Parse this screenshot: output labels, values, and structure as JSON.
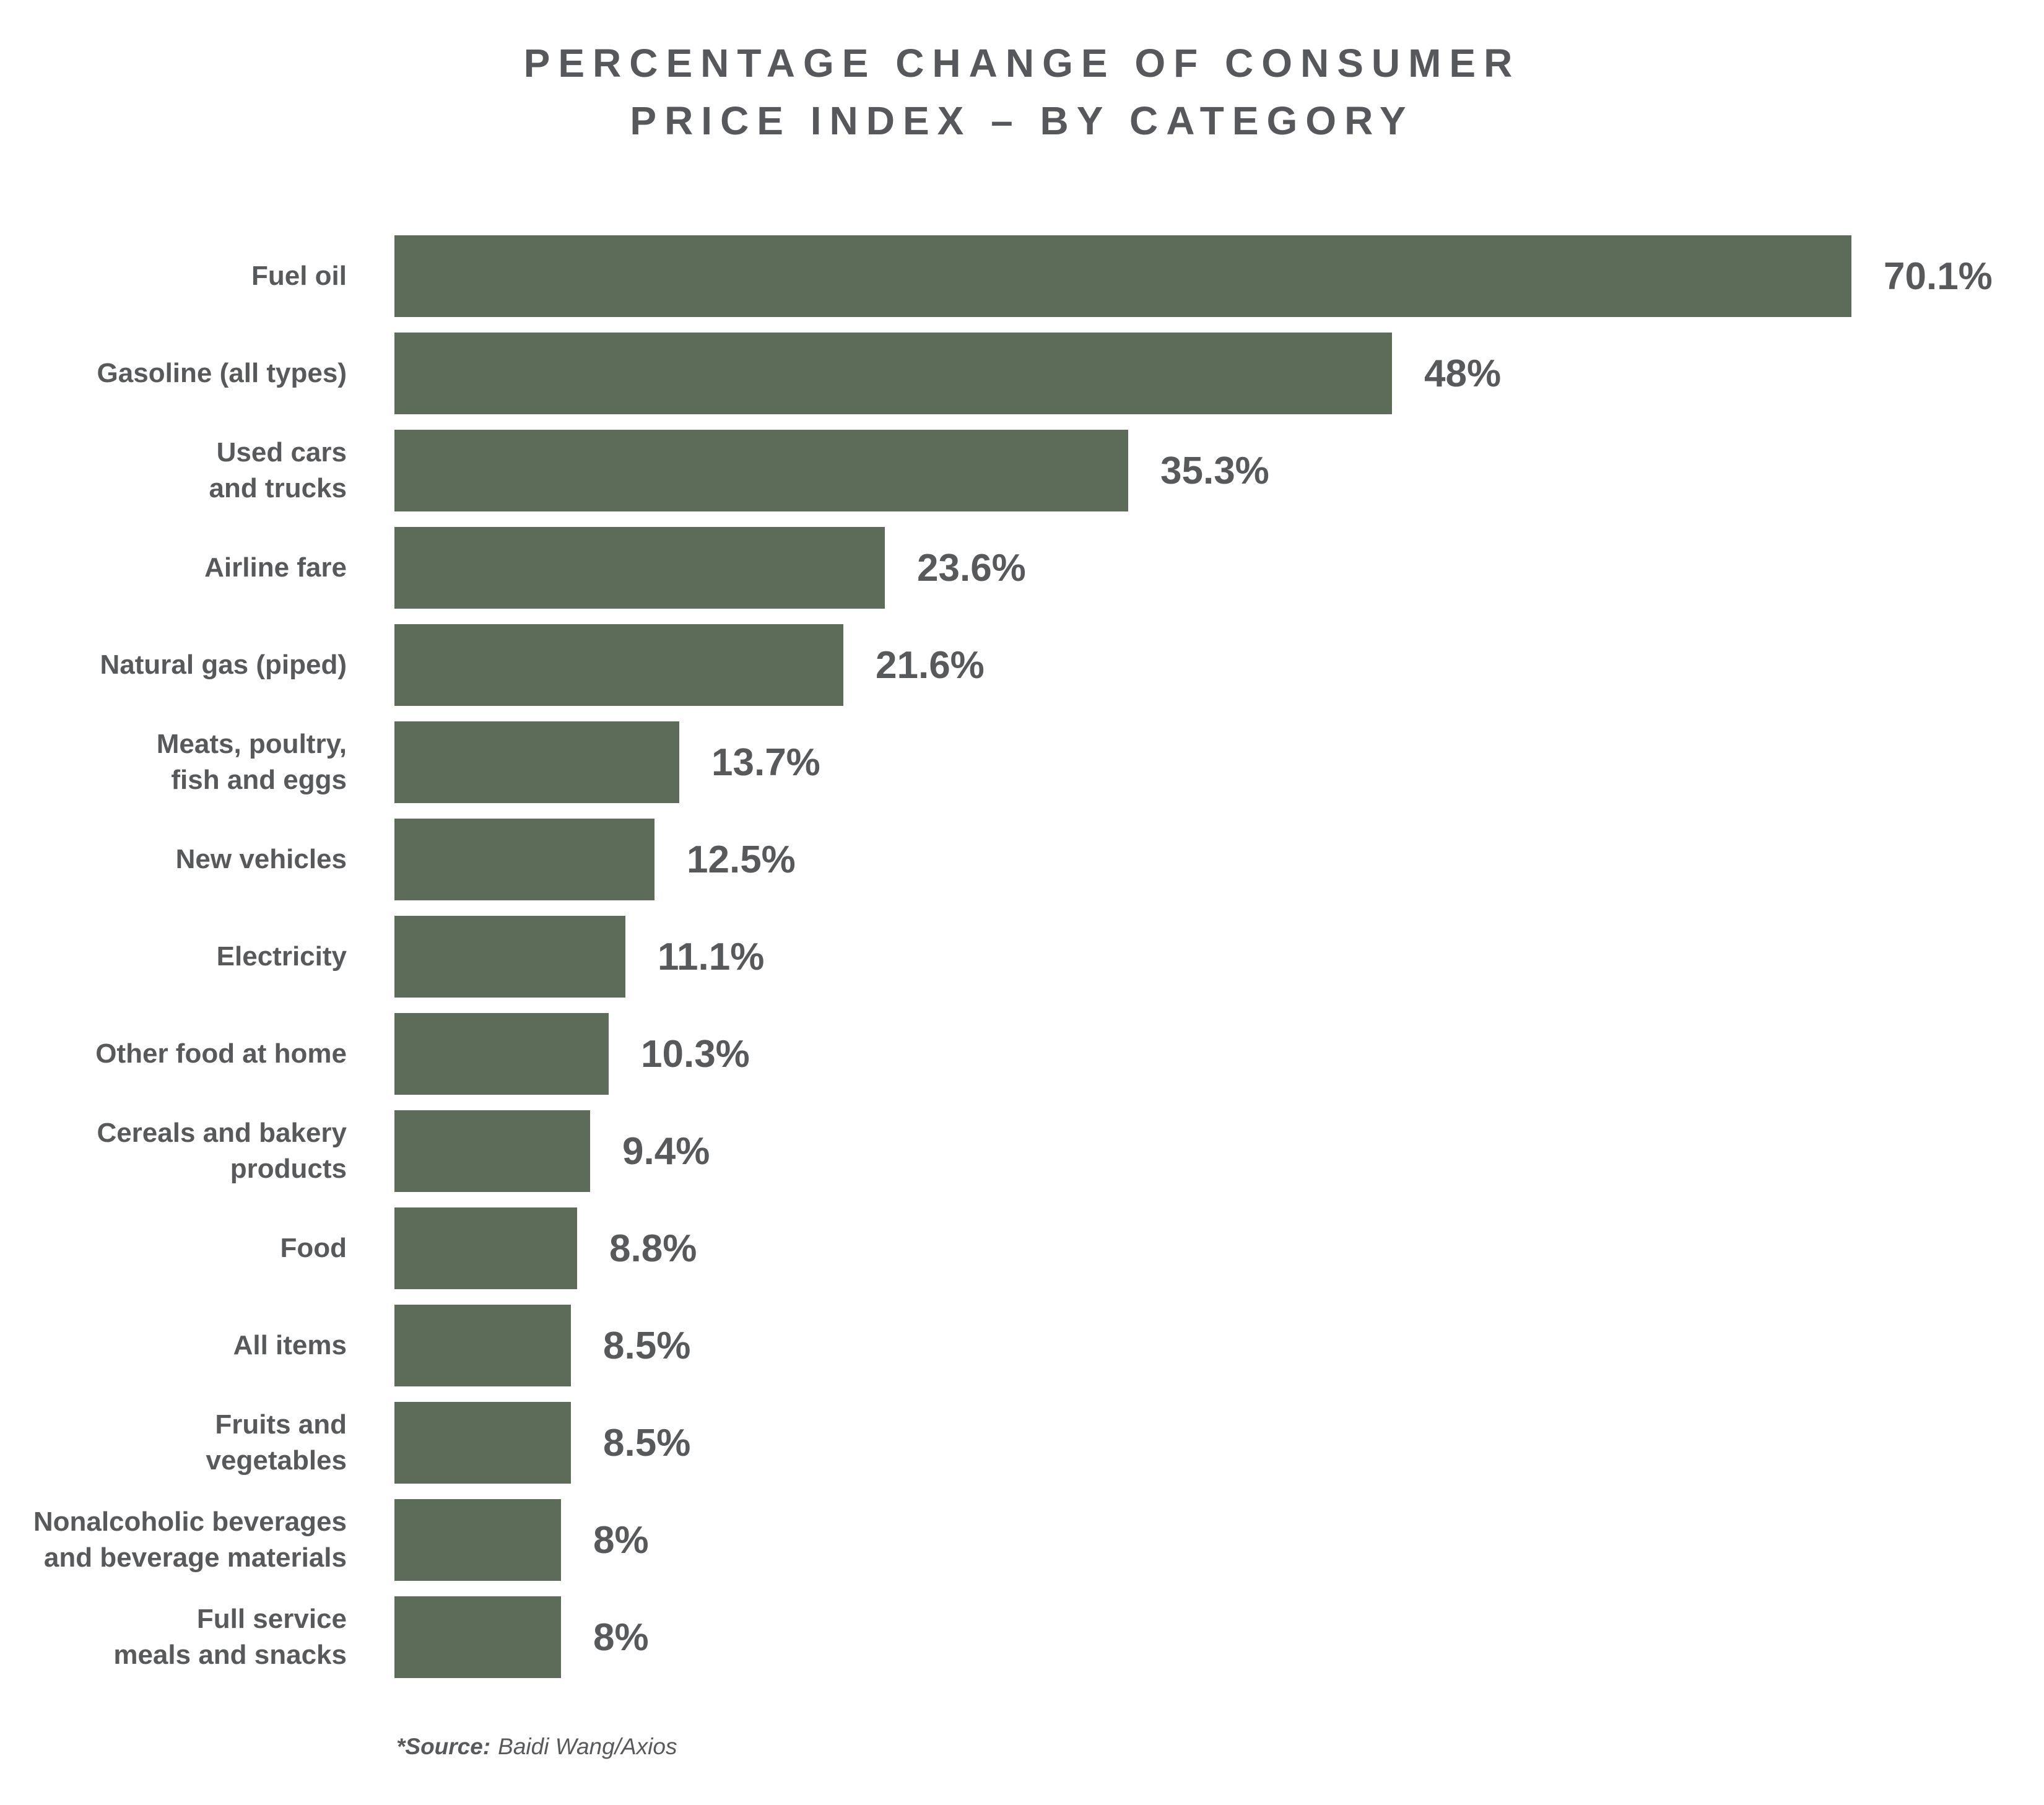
{
  "header": {
    "title_line1": "PERCENTAGE CHANGE OF CONSUMER",
    "title_line2": "PRICE INDEX – BY CATEGORY"
  },
  "chart_data": {
    "type": "bar",
    "orientation": "horizontal",
    "title": "PERCENTAGE CHANGE OF CONSUMER PRICE INDEX – BY CATEGORY",
    "xlabel": "",
    "ylabel": "",
    "xlim": [
      0,
      70.1
    ],
    "grid": false,
    "legend": false,
    "bar_color": "#5d6c58",
    "text_color": "#58595b",
    "categories": [
      "Fuel oil",
      "Gasoline (all types)",
      "Used cars\nand trucks",
      "Airline fare",
      "Natural gas (piped)",
      "Meats, poultry,\nfish and eggs",
      "New vehicles",
      "Electricity",
      "Other food at home",
      "Cereals and bakery\nproducts",
      "Food",
      "All items",
      "Fruits and\nvegetables",
      "Nonalcoholic beverages\nand beverage materials",
      "Full service\nmeals and snacks"
    ],
    "values": [
      70.1,
      48,
      35.3,
      23.6,
      21.6,
      13.7,
      12.5,
      11.1,
      10.3,
      9.4,
      8.8,
      8.5,
      8.5,
      8,
      8
    ],
    "value_labels": [
      "70.1%",
      "48%",
      "35.3%",
      "23.6%",
      "21.6%",
      "13.7%",
      "12.5%",
      "11.1%",
      "10.3%",
      "9.4%",
      "8.8%",
      "8.5%",
      "8.5%",
      "8%",
      "8%"
    ]
  },
  "footer": {
    "source_label": "*Source:",
    "source_text": "Baidi Wang/Axios"
  }
}
